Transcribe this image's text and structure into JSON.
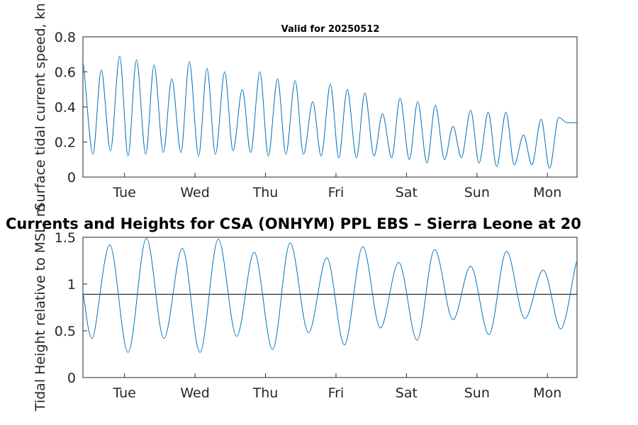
{
  "chart_data": [
    {
      "type": "line",
      "title": "Valid for 20250512",
      "ylabel": "Surface tidal current speed, kn",
      "xlabel": "",
      "ylim": [
        0,
        0.8
      ],
      "yticks": [
        "0",
        "0.2",
        "0.4",
        "0.6",
        "0.8"
      ],
      "xlim": [
        -0.59,
        6.42
      ],
      "xticks": [
        {
          "label": "Tue",
          "x": 0
        },
        {
          "label": "Wed",
          "x": 1
        },
        {
          "label": "Thu",
          "x": 2
        },
        {
          "label": "Fri",
          "x": 3
        },
        {
          "label": "Sat",
          "x": 4
        },
        {
          "label": "Sun",
          "x": 5
        },
        {
          "label": "Mon",
          "x": 6
        }
      ],
      "grid": false,
      "series": [
        {
          "color": "#0072bd",
          "x": [
            -0.59,
            -0.45,
            -0.33,
            -0.2,
            -0.07,
            0.05,
            0.17,
            0.3,
            0.42,
            0.55,
            0.67,
            0.8,
            0.92,
            1.05,
            1.17,
            1.29,
            1.42,
            1.54,
            1.67,
            1.79,
            1.92,
            2.04,
            2.17,
            2.29,
            2.42,
            2.54,
            2.67,
            2.79,
            2.92,
            3.04,
            3.16,
            3.29,
            3.41,
            3.54,
            3.66,
            3.79,
            3.91,
            4.04,
            4.16,
            4.29,
            4.41,
            4.54,
            4.66,
            4.78,
            4.91,
            5.03,
            5.16,
            5.28,
            5.41,
            5.53,
            5.66,
            5.78,
            5.91,
            6.03,
            6.16,
            6.28,
            6.42
          ],
          "y": [
            0.65,
            0.13,
            0.61,
            0.15,
            0.69,
            0.12,
            0.67,
            0.13,
            0.64,
            0.14,
            0.56,
            0.14,
            0.66,
            0.12,
            0.62,
            0.13,
            0.6,
            0.15,
            0.5,
            0.14,
            0.6,
            0.12,
            0.56,
            0.13,
            0.55,
            0.13,
            0.43,
            0.12,
            0.53,
            0.11,
            0.5,
            0.11,
            0.48,
            0.12,
            0.36,
            0.11,
            0.45,
            0.1,
            0.43,
            0.08,
            0.41,
            0.1,
            0.29,
            0.11,
            0.38,
            0.08,
            0.37,
            0.06,
            0.37,
            0.07,
            0.24,
            0.07,
            0.33,
            0.05,
            0.34,
            0.31,
            0.31
          ]
        }
      ]
    },
    {
      "type": "line",
      "title": "Currents and Heights for CSA (ONHYM) PPL EBS  – Sierra Leone at 20",
      "ylabel": "Tidal Height relative to MSL, m",
      "xlabel": "",
      "ylim": [
        0,
        1.5
      ],
      "yticks": [
        "0",
        "0.5",
        "1",
        "1.5"
      ],
      "xlim": [
        -0.59,
        6.42
      ],
      "xticks": [
        {
          "label": "Tue",
          "x": 0
        },
        {
          "label": "Wed",
          "x": 1
        },
        {
          "label": "Thu",
          "x": 2
        },
        {
          "label": "Fri",
          "x": 3
        },
        {
          "label": "Sat",
          "x": 4
        },
        {
          "label": "Sun",
          "x": 5
        },
        {
          "label": "Mon",
          "x": 6
        }
      ],
      "grid": false,
      "reference_line": {
        "y": 0.89,
        "color": "#262626"
      },
      "series": [
        {
          "color": "#0072bd",
          "x": [
            -0.59,
            -0.46,
            -0.21,
            0.05,
            0.31,
            0.56,
            0.82,
            1.07,
            1.33,
            1.59,
            1.84,
            2.1,
            2.35,
            2.61,
            2.87,
            3.12,
            3.38,
            3.63,
            3.89,
            4.15,
            4.4,
            4.66,
            4.91,
            5.17,
            5.42,
            5.68,
            5.94,
            6.19,
            6.42
          ],
          "y": [
            0.89,
            0.42,
            1.42,
            0.27,
            1.49,
            0.42,
            1.38,
            0.27,
            1.48,
            0.44,
            1.34,
            0.3,
            1.44,
            0.48,
            1.28,
            0.35,
            1.4,
            0.53,
            1.23,
            0.4,
            1.37,
            0.62,
            1.19,
            0.46,
            1.35,
            0.63,
            1.15,
            0.52,
            1.24
          ]
        }
      ]
    }
  ]
}
